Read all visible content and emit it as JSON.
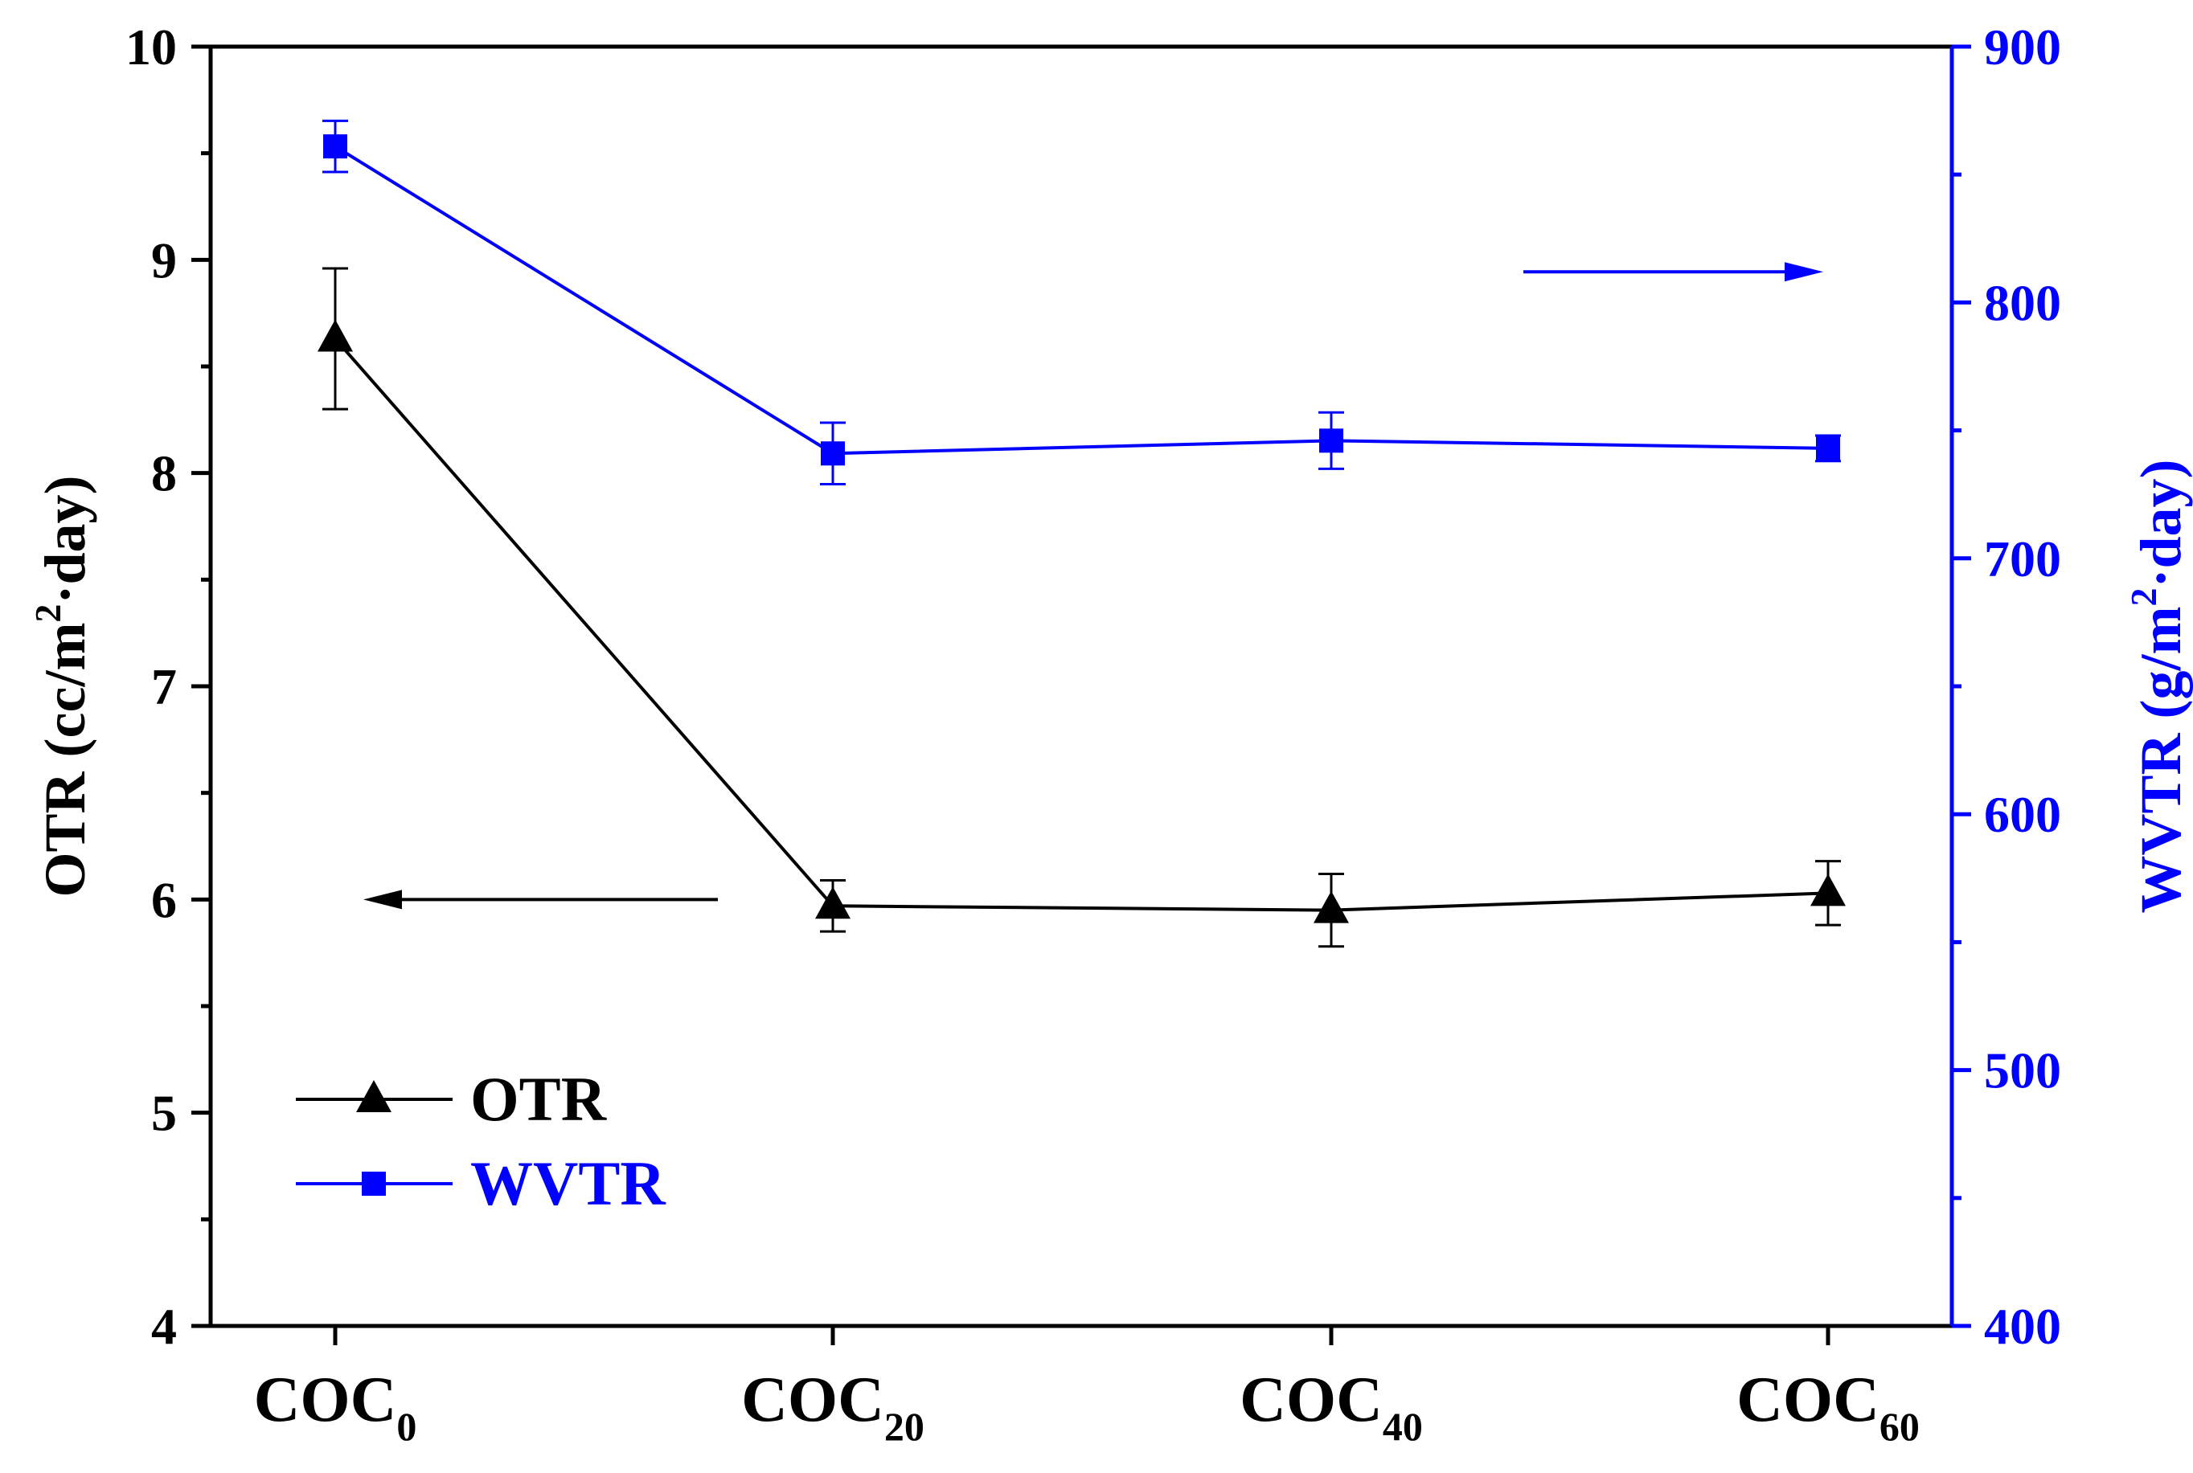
{
  "chart_data": {
    "type": "line",
    "categories": [
      {
        "base": "COC",
        "sub": "0"
      },
      {
        "base": "COC",
        "sub": "20"
      },
      {
        "base": "COC",
        "sub": "40"
      },
      {
        "base": "COC",
        "sub": "60"
      }
    ],
    "left_axis": {
      "label": "OTR (cc/m²·day)",
      "label_parts": {
        "pre": "OTR (cc/m",
        "sup": "2",
        "post": "·day)"
      },
      "ylim": [
        4,
        10
      ],
      "ticks": [
        "4",
        "5",
        "6",
        "7",
        "8",
        "9",
        "10"
      ]
    },
    "right_axis": {
      "label": "WVTR (g/m²·day)",
      "label_parts": {
        "pre": "WVTR (g/m",
        "sup": "2",
        "post": "·day)"
      },
      "ylim": [
        400,
        900
      ],
      "ticks": [
        "400",
        "500",
        "600",
        "700",
        "800",
        "900"
      ]
    },
    "series": [
      {
        "name": "OTR",
        "axis": "left",
        "marker": "triangle",
        "color": "#000000",
        "values": [
          8.63,
          5.97,
          5.95,
          6.03
        ],
        "errors": [
          0.33,
          0.12,
          0.17,
          0.15
        ]
      },
      {
        "name": "WVTR",
        "axis": "right",
        "marker": "square",
        "color": "#0000ff",
        "values": [
          861,
          741,
          746,
          743
        ],
        "errors": [
          10,
          12,
          11,
          5
        ]
      }
    ],
    "legend": {
      "position": "bottom-left",
      "entries": [
        "OTR",
        "WVTR"
      ]
    },
    "annotations": [
      {
        "type": "arrow",
        "direction": "left",
        "refers_to": "OTR",
        "at_left_value": 6.0
      },
      {
        "type": "arrow",
        "direction": "right",
        "refers_to": "WVTR",
        "at_right_value": 812
      }
    ]
  }
}
